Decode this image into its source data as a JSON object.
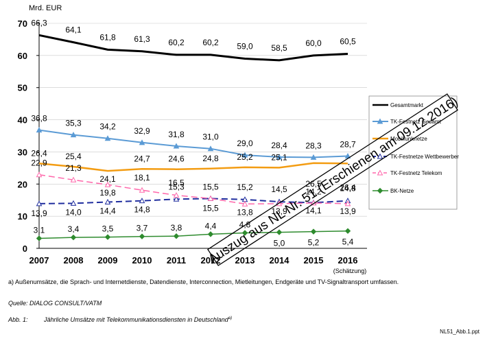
{
  "chart_data": {
    "type": "line",
    "ylabel": "Mrd. EUR",
    "ylim": [
      0,
      70
    ],
    "yticks": [
      0,
      10,
      20,
      30,
      40,
      50,
      60,
      70
    ],
    "categories": [
      "2007",
      "2008",
      "2009",
      "2010",
      "2011",
      "2012",
      "2013",
      "2014",
      "2015",
      "2016"
    ],
    "category_sublabel": "(Schätzung)",
    "series": [
      {
        "key": "gesamt",
        "name": "Gesamtmarkt",
        "color": "#000000",
        "marker": "none",
        "values": [
          66.3,
          64.1,
          61.8,
          61.3,
          60.2,
          60.2,
          59.0,
          58.5,
          60.0,
          60.5
        ],
        "labels": [
          "66,3",
          "64,1",
          "61,8",
          "61,3",
          "60,2",
          "60,2",
          "59,0",
          "58,5",
          "60,0",
          "60,5"
        ]
      },
      {
        "key": "tkfg",
        "name": "TK-Festnetz Gesamt",
        "color": "#5b9bd5",
        "marker": "triangle",
        "values": [
          36.8,
          35.3,
          34.2,
          32.9,
          31.8,
          31.0,
          29.0,
          28.4,
          28.3,
          28.7
        ],
        "labels": [
          "36,8",
          "35,3",
          "34,2",
          "32,9",
          "31,8",
          "31,0",
          "29,0",
          "28,4",
          "28,3",
          "28,7"
        ]
      },
      {
        "key": "mobil",
        "name": "Mobilfunknetze",
        "color": "#f39c12",
        "marker": "none",
        "values": [
          26.4,
          25.4,
          24.1,
          24.7,
          24.6,
          24.8,
          25.2,
          25.1,
          26.5,
          26.4
        ],
        "labels": [
          "26,4",
          "25,4",
          "24,1",
          "24,7",
          "24,6",
          "24,8",
          "25,2",
          "25,1",
          "26,5",
          "26,4"
        ]
      },
      {
        "key": "tkfw",
        "name": "TK-Festnetze Wettbewerber",
        "color": "#1f2d9e",
        "marker": "triangle-open",
        "values": [
          13.9,
          14.0,
          14.4,
          14.8,
          15.3,
          15.5,
          15.2,
          14.5,
          14.2,
          14.8
        ],
        "labels": [
          "13,9",
          "14,0",
          "14,4",
          "14,8",
          "15,3",
          "15,5",
          "15,2",
          "14,5",
          "14,2",
          "14,8"
        ]
      },
      {
        "key": "tkft",
        "name": "TK-Festnetz Telekom",
        "color": "#ff66aa",
        "marker": "triangle-open",
        "values": [
          22.9,
          21.3,
          19.8,
          18.1,
          16.5,
          15.5,
          13.8,
          13.9,
          14.1,
          13.9
        ],
        "labels": [
          "22,9",
          "21,3",
          "19,8",
          "18,1",
          "16,5",
          "15,5",
          "13,8",
          "13,9",
          "14,1",
          "13,9"
        ]
      },
      {
        "key": "bk",
        "name": "BK-Netze",
        "color": "#2e8b2e",
        "marker": "diamond",
        "values": [
          3.1,
          3.4,
          3.5,
          3.7,
          3.8,
          4.4,
          4.8,
          5.0,
          5.2,
          5.4
        ],
        "labels": [
          "3,1",
          "3,4",
          "3,5",
          "3,7",
          "3,8",
          "4,4",
          "4,8",
          "5,0",
          "5,2",
          "5,4"
        ]
      }
    ],
    "watermark": "Auszug aus NL Nr. 51 (Erschienen am 09.12.2016)"
  },
  "footnote": "a)   Außenumsätze, die Sprach- und Internetdienste, Datendienste, Interconnection, Mietleitungen, Endgeräte und TV-Signaltransport umfassen.",
  "source": "Quelle: DIALOG CONSULT/VATM",
  "caption": {
    "label": "Abb. 1:",
    "text": "Jährliche Umsätze mit Telekommunikationsdiensten in Deutschland",
    "marker": "a)"
  },
  "file_id": "NL51_Abb.1.ppt"
}
